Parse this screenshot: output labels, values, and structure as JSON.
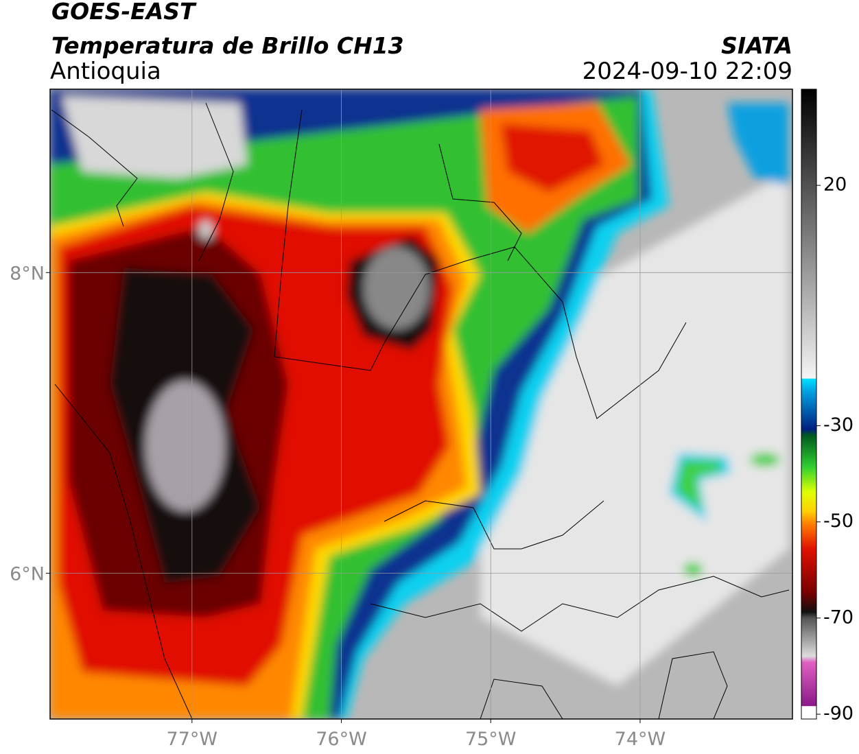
{
  "map": {
    "title": "GOES-EAST",
    "subtitle": "Temperatura de Brillo CH13",
    "region": "Antioquia",
    "source": "SIATA",
    "datetime": "2024-09-10 22:09",
    "xlim": [
      -77.95,
      -72.98
    ],
    "ylim": [
      5.03,
      9.22
    ],
    "xticks": [
      {
        "value": -77,
        "label": "77°W"
      },
      {
        "value": -76,
        "label": "76°W"
      },
      {
        "value": -75,
        "label": "75°W"
      },
      {
        "value": -74,
        "label": "74°W"
      }
    ],
    "yticks": [
      {
        "value": 8,
        "label": "8°N"
      },
      {
        "value": 6,
        "label": "6°N"
      }
    ],
    "grid": true,
    "colorbar": {
      "clim": [
        -91,
        40
      ],
      "ticks": [
        20,
        -30,
        -50,
        -70,
        -90
      ]
    }
  }
}
